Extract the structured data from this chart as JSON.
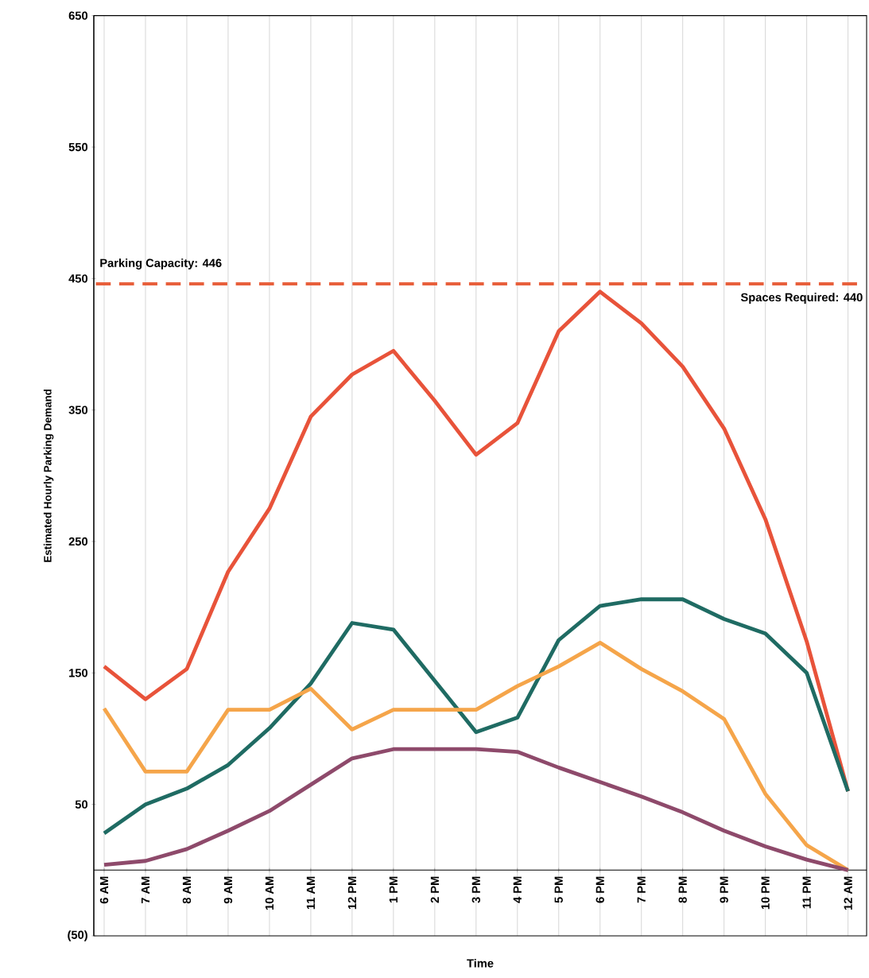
{
  "chart_data": {
    "type": "line",
    "xlabel": "Time",
    "ylabel": "Estimated Hourly Parking Demand",
    "categories": [
      "6 AM",
      "7 AM",
      "8 AM",
      "9 AM",
      "10 AM",
      "11 AM",
      "12 PM",
      "1 PM",
      "2 PM",
      "3 PM",
      "4 PM",
      "5 PM",
      "6 PM",
      "7 PM",
      "8 PM",
      "9 PM",
      "10 PM",
      "11 PM",
      "12 AM"
    ],
    "series": [
      {
        "color": "#e8533a",
        "values": [
          155,
          130,
          153,
          227,
          275,
          345,
          377,
          395,
          357,
          316,
          340,
          410,
          440,
          416,
          383,
          336,
          267,
          174,
          60
        ]
      },
      {
        "color": "#1f6b63",
        "values": [
          28,
          50,
          62,
          80,
          108,
          142,
          188,
          183,
          144,
          105,
          116,
          175,
          201,
          206,
          206,
          191,
          180,
          150,
          60
        ]
      },
      {
        "color": "#f5a54a",
        "values": [
          123,
          75,
          75,
          122,
          122,
          138,
          107,
          122,
          122,
          122,
          140,
          155,
          173,
          153,
          136,
          115,
          58,
          19,
          0
        ]
      },
      {
        "color": "#8e4a6b",
        "values": [
          4,
          7,
          16,
          30,
          45,
          65,
          85,
          92,
          92,
          92,
          90,
          78,
          67,
          56,
          44,
          30,
          18,
          8,
          0
        ]
      }
    ],
    "ylim": [
      -50,
      650
    ],
    "yticks": [
      {
        "value": -50,
        "label": "(50)"
      },
      50,
      150,
      250,
      350,
      450,
      550,
      650
    ],
    "ref_lines": [
      {
        "axis": "y",
        "value": 446,
        "label": "Parking Capacity: 446",
        "color": "#e8603c",
        "line_style": "dashed"
      }
    ],
    "annotations": [
      "Spaces Required: 440"
    ],
    "grid": "x",
    "line_style": "solid",
    "marker": "none",
    "legend": false
  }
}
